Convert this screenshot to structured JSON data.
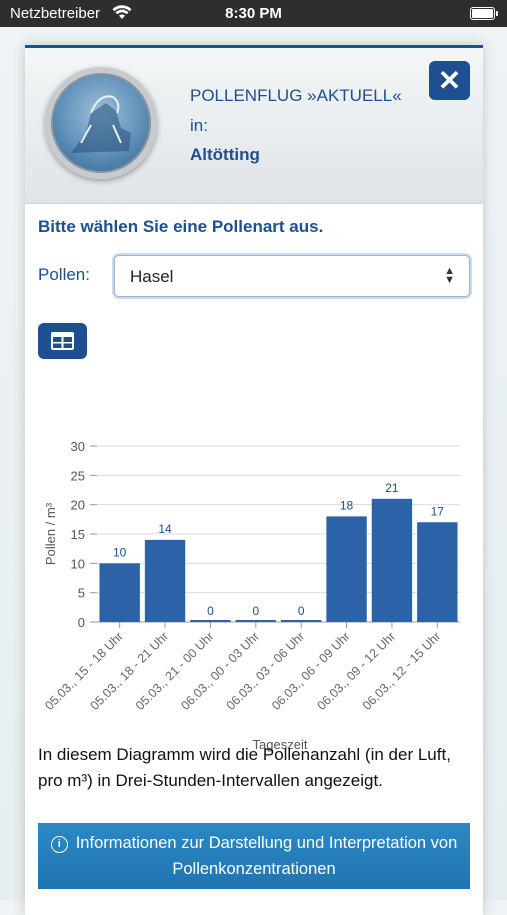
{
  "status_bar": {
    "carrier": "Netzbetreiber",
    "time": "8:30 PM"
  },
  "header": {
    "title_line1": "POLLENFLUG »AKTUELL«",
    "title_line2": "in:",
    "location": "Altötting",
    "close_label": "✕"
  },
  "form": {
    "prompt": "Bitte wählen Sie eine Pollenart aus.",
    "pollen_label": "Pollen:",
    "pollen_selected": "Hasel"
  },
  "chart_data": {
    "type": "bar",
    "categories": [
      "05.03., 15 - 18 Uhr",
      "05.03., 18 - 21 Uhr",
      "05.03., 21 - 00 Uhr",
      "06.03., 00 - 03 Uhr",
      "06.03., 03 - 06 Uhr",
      "06.03., 06 - 09 Uhr",
      "06.03., 09 - 12 Uhr",
      "06.03., 12 - 15 Uhr"
    ],
    "values": [
      10,
      14,
      0,
      0,
      0,
      18,
      21,
      17
    ],
    "value_labels": [
      "10",
      "14",
      "0",
      "0",
      "0",
      "18",
      "21",
      "17"
    ],
    "y_ticks": [
      "0",
      "5",
      "10",
      "15",
      "20",
      "25",
      "30"
    ],
    "xlabel": "Tageszeit",
    "ylabel": "Pollen / m³",
    "ylim": [
      0,
      30
    ],
    "bar_color": "#2b62a8",
    "grid": true
  },
  "description": "In diesem Diagramm wird die Pollenanzahl (in der Luft, pro m³) in Drei-Stunden-Intervallen angezeigt.",
  "info": {
    "text": "Informationen zur Darstellung und Interpretation von Pollenkonzentrationen"
  }
}
